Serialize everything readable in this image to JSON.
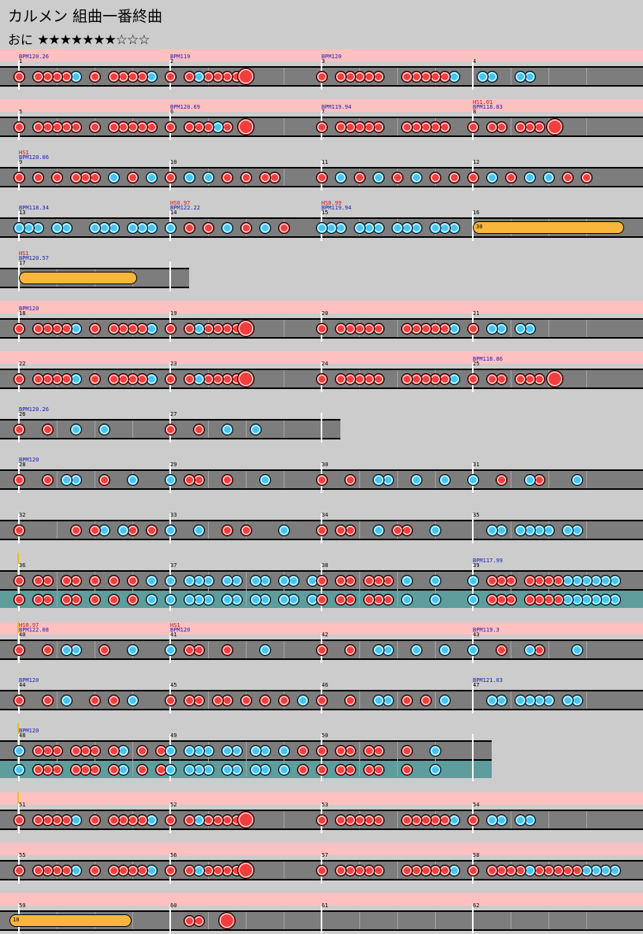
{
  "title": "カルメン 組曲一番終曲",
  "difficulty": {
    "label": "おに",
    "stars": "★★★★★★★☆☆☆"
  },
  "colors": {
    "don": "#f33e3e",
    "ka": "#48c4f2",
    "roll": "#f9b63c",
    "band": "#ffc0c0",
    "lane": "#7d7d7d",
    "branch_lane": "#5f9c9c"
  },
  "measure_labels": {
    "m1": "1",
    "m2": "2",
    "m3": "3",
    "m4": "4",
    "m5": "5",
    "m6": "6",
    "m7": "7",
    "m8": "8",
    "m9": "9",
    "m10": "10",
    "m11": "11",
    "m12": "12",
    "m13": "13",
    "m14": "14",
    "m15": "15",
    "m16": "16",
    "m17": "17",
    "m18": "18",
    "m19": "19",
    "m20": "20",
    "m21": "21",
    "m22": "22",
    "m23": "23",
    "m24": "24",
    "m25": "25",
    "m26": "26",
    "m27": "27",
    "m28": "28",
    "m29": "29",
    "m30": "30",
    "m31": "31",
    "m32": "32",
    "m33": "33",
    "m34": "34",
    "m35": "35",
    "m36": "36",
    "m37": "37",
    "m38": "38",
    "m39": "39",
    "m40": "40",
    "m41": "41",
    "m42": "42",
    "m43": "43",
    "m44": "44",
    "m45": "45",
    "m46": "46",
    "m47": "47",
    "m48": "48",
    "m49": "49",
    "m50": "50",
    "m51": "51",
    "m52": "52",
    "m53": "53",
    "m54": "54",
    "m55": "55",
    "m56": "56",
    "m57": "57",
    "m58": "58",
    "m59": "59",
    "m60": "60",
    "m61": "61",
    "m62": "62"
  },
  "events": {
    "bpm_1": "BPM120.26",
    "bpm_2": "BPM119",
    "bpm_3": "BPM120",
    "bpm_6": "BPM120.69",
    "bpm_7": "BPM119.94",
    "hs_8": "HS1.01",
    "bpm_8": "BPM118.83",
    "hs_9": "HS1",
    "bpm_9": "BPM120.06",
    "bpm_13": "BPM118.34",
    "hs_14": "HS0.97",
    "bpm_14": "BPM122.22",
    "hs_15": "HS0.99",
    "bpm_15": "BPM119.94",
    "hs_17": "HS1",
    "bpm_17": "BPM120.57",
    "bpm_18": "BPM120",
    "bpm_25": "BPM118.86",
    "bpm_26": "BPM120.26",
    "bpm_28": "BPM120",
    "bpm_39": "BPM117.99",
    "hs_40": "HS0.97",
    "bpm_40": "BPM122.08",
    "hs_41": "HS1",
    "bpm_41": "BPM120",
    "bpm_43": "BPM119.3",
    "bpm_44": "BPM120",
    "bpm_47": "BPM121.03",
    "bpm_48": "BPM120"
  },
  "rolls": {
    "r16": "30",
    "r59": "10"
  }
}
